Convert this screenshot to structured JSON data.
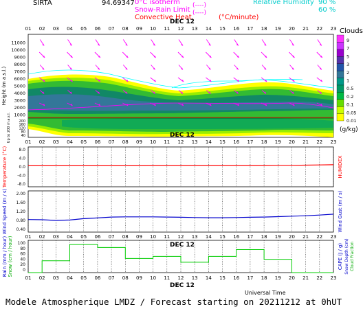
{
  "header": {
    "station": "SIRTA",
    "coords": "94.69347",
    "legend_isotherm": "0°C isotherm",
    "legend_snow_rain": "Snow-Rain Limit",
    "legend_convective": "Convective Heat.",
    "legend_convective_unit": "(°C/minute)",
    "legend_rh": "Relative Humidity",
    "rh_levels": [
      "90 %",
      "60 %"
    ]
  },
  "colors": {
    "isotherm": "#ff00ff",
    "convective": "#ff0000",
    "rh": "#00ffff",
    "wind_arrow": "#ff00ff",
    "temperature": "#ff0000",
    "wind": "#0000cc",
    "cloud_scale": [
      "#ffff00",
      "#ccff00",
      "#66dd00",
      "#00bb44",
      "#009966",
      "#009988",
      "#337799",
      "#2255aa",
      "#5533aa",
      "#9900cc",
      "#cc33ff",
      "#ff33ff",
      "#ffffff"
    ]
  },
  "date_label": "DEC 12",
  "hours": [
    "01",
    "02",
    "03",
    "04",
    "05",
    "06",
    "07",
    "08",
    "09",
    "10",
    "11",
    "12",
    "13",
    "14",
    "15",
    "16",
    "17",
    "18",
    "19",
    "20",
    "21",
    "22",
    "23"
  ],
  "clouds_panel": {
    "ylabel": "Height  (m a.s.l.)",
    "ylabel2": "Up to 200 m a.s.l.",
    "yticks_upper": [
      "11000",
      "10000",
      "9000",
      "8000",
      "7000",
      "6000",
      "5000",
      "4000",
      "3000",
      "2000",
      "1000"
    ],
    "yticks_lower": [
      "200",
      "180",
      "160",
      "140",
      "120",
      "100",
      "80",
      "60",
      "40",
      "20"
    ],
    "colorbar_title": "Clouds",
    "colorbar_ticks": [
      "9",
      "7",
      "5",
      "3",
      "2",
      "1",
      "0.5",
      "0.2",
      "0.1",
      "0.05",
      "0.01"
    ],
    "colorbar_unit": "(g/kg)"
  },
  "temp_panel": {
    "ylabel": "Temperature (°C)",
    "ylabel_right": "HUMIDEX",
    "yticks": [
      "8.0",
      "4.0",
      "0.0",
      "-4.0",
      "-8.0"
    ]
  },
  "wind_panel": {
    "ylabel": "Wind Speed (m / s)",
    "ylabel_right": "Wind Gust (m / s)",
    "yticks": [
      "2.00",
      "1.60",
      "1.20",
      "0.80",
      "0.40"
    ]
  },
  "rain_panel": {
    "ylabel": "Rain (mm / hour)",
    "ylabel2": "Snow (cm / hour)",
    "ylabel_right": "CAPE (J / g)",
    "ylabel_right2": "Snow Depth (cm)",
    "ylabel_right3": "Cloud Fraction",
    "yticks": [
      "100",
      "80",
      "60",
      "40",
      "20",
      "0"
    ]
  },
  "footer": "Modele Atmospherique LMDZ / Forecast starting on 20211212 at 0hUT",
  "xlabel": "Universal Time",
  "chart_data": [
    {
      "type": "line",
      "title": "Temperature",
      "x": [
        "01",
        "02",
        "03",
        "04",
        "05",
        "06",
        "07",
        "08",
        "09",
        "10",
        "11",
        "12",
        "13",
        "14",
        "15",
        "16",
        "17",
        "18",
        "19",
        "20",
        "21",
        "22",
        "23"
      ],
      "series": [
        {
          "values": [
            0.5,
            0.5,
            0.5,
            0.5,
            0.5,
            0.5,
            0.5,
            0.5,
            0.5,
            0.6,
            0.6,
            0.6,
            0.6,
            0.6,
            0.6,
            0.6,
            0.6,
            0.6,
            0.7,
            0.7,
            0.8,
            0.9,
            1.0
          ]
        }
      ],
      "ylim": [
        -8,
        8
      ]
    },
    {
      "type": "line",
      "title": "Wind Speed",
      "x": [
        "01",
        "02",
        "03",
        "04",
        "05",
        "06",
        "07",
        "08",
        "09",
        "10",
        "11",
        "12",
        "13",
        "14",
        "15",
        "16",
        "17",
        "18",
        "19",
        "20",
        "21",
        "22",
        "23"
      ],
      "series": [
        {
          "values": [
            0.84,
            0.83,
            0.8,
            0.82,
            0.88,
            0.91,
            0.95,
            0.96,
            0.96,
            0.96,
            0.95,
            0.94,
            0.93,
            0.92,
            0.92,
            0.93,
            0.94,
            0.95,
            0.97,
            0.99,
            1.01,
            1.04,
            1.08
          ]
        }
      ],
      "ylim": [
        0.4,
        2.0
      ]
    },
    {
      "type": "bar",
      "title": "Cloud Fraction",
      "categories": [
        "01",
        "02",
        "03",
        "04",
        "05",
        "06",
        "07",
        "08",
        "09",
        "10",
        "11",
        "12",
        "13",
        "14",
        "15",
        "16",
        "17",
        "18",
        "19",
        "20",
        "21",
        "22",
        "23"
      ],
      "values": [
        0,
        40,
        40,
        95,
        95,
        85,
        85,
        48,
        48,
        55,
        55,
        35,
        35,
        55,
        55,
        78,
        78,
        45,
        45,
        0,
        0,
        0,
        0
      ],
      "ylim": [
        0,
        100
      ]
    }
  ]
}
